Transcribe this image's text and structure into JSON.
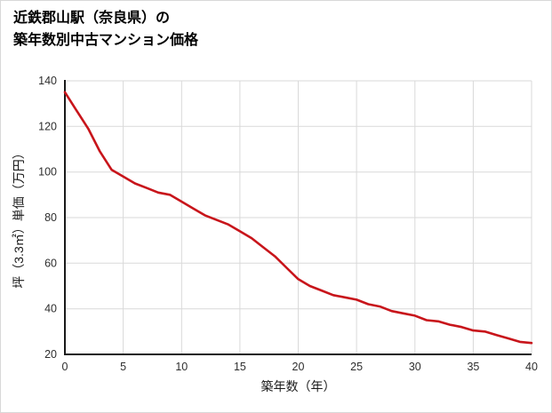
{
  "title": {
    "line1": "近鉄郡山駅（奈良県）の",
    "line2": "築年数別中古マンション価格"
  },
  "chart_data": {
    "type": "line",
    "title": "近鉄郡山駅（奈良県）の築年数別中古マンション価格",
    "xlabel": "築年数（年）",
    "ylabel": "坪（3.3㎡）単価（万円）",
    "x": [
      0,
      1,
      2,
      3,
      4,
      5,
      6,
      7,
      8,
      9,
      10,
      11,
      12,
      13,
      14,
      15,
      16,
      17,
      18,
      19,
      20,
      21,
      22,
      23,
      24,
      25,
      26,
      27,
      28,
      29,
      30,
      31,
      32,
      33,
      34,
      35,
      36,
      37,
      38,
      39,
      40
    ],
    "values": [
      135,
      127,
      119,
      109,
      101,
      98,
      95,
      93,
      91,
      90,
      87,
      84,
      81,
      79,
      77,
      74,
      71,
      67,
      63,
      58,
      53,
      50,
      48,
      46,
      45,
      44,
      42,
      41,
      39,
      38,
      37,
      35,
      34.5,
      33,
      32,
      30.5,
      30,
      28.5,
      27,
      25.5,
      25
    ],
    "xlim": [
      0,
      40
    ],
    "ylim": [
      20,
      140
    ],
    "xticks": [
      0,
      5,
      10,
      15,
      20,
      25,
      30,
      35,
      40
    ],
    "yticks": [
      20,
      40,
      60,
      80,
      100,
      120,
      140
    ],
    "grid": true,
    "line_color": "#c8151b",
    "grid_color": "#d9d9d9",
    "axis_color": "#1a1a1a"
  }
}
